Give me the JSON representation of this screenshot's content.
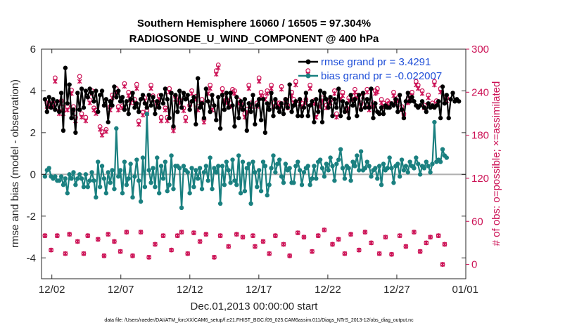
{
  "chart_data": {
    "type": "line",
    "title_line1": "Southern Hemisphere 16060 / 16505 = 97.304%",
    "title_line2": "RADIOSONDE_U_WIND_COMPONENT @ 400 hPa",
    "xlabel": "Dec.01,2013 00:00:00 start",
    "ylabel_left": "rmse and bias (model - observation)",
    "ylabel_right": "# of obs: o=possible; ×=assimilated",
    "footnote": "data file: /Users/raeder/DAI/ATM_forcXX/CAM6_setup/f.e21.FHIST_BGC.f09_025.CAM6assim.011/Diags_NTrS_2013-12/obs_diag_output.nc",
    "x_ticks": [
      1.5,
      6.5,
      11.5,
      16.5,
      21.5,
      26.5,
      31.5
    ],
    "x_tick_labels": [
      "12/02",
      "12/07",
      "12/12",
      "12/17",
      "12/22",
      "12/27",
      "01/01"
    ],
    "xlim": [
      0.75,
      31.5
    ],
    "ylim_left": [
      -5,
      6
    ],
    "y_ticks_left": [
      -4,
      -2,
      0,
      2,
      4,
      6
    ],
    "ylim_right": [
      -20,
      300
    ],
    "y_ticks_right": [
      0,
      60,
      120,
      180,
      240,
      300
    ],
    "zero_line": 0,
    "colors": {
      "rmse": "#000000",
      "bias": "#1a8080",
      "obs": "#cc1155",
      "zero": "#b0b0b0",
      "legend_text": "#1f4fd8"
    },
    "series": [
      {
        "name": "rmse grand pr = 3.4291",
        "axis": "left",
        "values": [
          3.6,
          3.0,
          3.7,
          3.2,
          3.6,
          3.1,
          3.5,
          3.0,
          3.9,
          2.1,
          5.1,
          3.4,
          4.3,
          2.7,
          3.1,
          2.0,
          3.9,
          3.1,
          4.1,
          3.2,
          4.0,
          3.7,
          4.1,
          3.9,
          3.5,
          4.0,
          3.0,
          3.8,
          4.0,
          3.3,
          3.6,
          2.5,
          3.5,
          3.3,
          4.2,
          3.7,
          4.0,
          3.5,
          3.7,
          3.1,
          3.5,
          2.9,
          3.6,
          3.9,
          3.2,
          3.4,
          3.0,
          3.6,
          3.8,
          3.4,
          3.2,
          3.8,
          3.3,
          3.7,
          2.9,
          3.5,
          3.2,
          3.8,
          3.4,
          4.1,
          3.6,
          2.7,
          3.9,
          2.3,
          3.8,
          3.0,
          4.0,
          3.2,
          3.9,
          3.6,
          3.8,
          3.1,
          3.5,
          3.7,
          2.4,
          4.6,
          3.2,
          3.4,
          2.7,
          4.1,
          3.5,
          3.0,
          3.8,
          3.3,
          2.6,
          3.7,
          2.2,
          3.8,
          3.1,
          3.9,
          3.2,
          3.9,
          3.3,
          2.3,
          3.7,
          2.7,
          3.5,
          3.1,
          3.6,
          2.1,
          3.4,
          3.0,
          3.8,
          2.4,
          3.3,
          3.6,
          2.6,
          3.6,
          2.0,
          3.4,
          3.1,
          3.9,
          2.8,
          3.6,
          3.2,
          3.0,
          3.4,
          2.9,
          3.6,
          3.2,
          4.3,
          3.0,
          3.3,
          3.5,
          2.8,
          3.6,
          2.8,
          3.2,
          3.9,
          2.8,
          3.3,
          3.5,
          2.5,
          3.6,
          3.0,
          4.0,
          2.5,
          3.9,
          3.6,
          3.2,
          3.7,
          2.8,
          3.6,
          3.2,
          4.1,
          2.8,
          3.5,
          3.0,
          3.4,
          2.7,
          3.8,
          3.3,
          3.6,
          2.8,
          3.8,
          3.1,
          3.9,
          3.2,
          3.6,
          3.2,
          4.1,
          2.7,
          3.4,
          3.0,
          2.9,
          3.2,
          2.9,
          3.3,
          3.2,
          3.2,
          3.4,
          3.3,
          3.6,
          3.0,
          3.8,
          3.1,
          2.7,
          3.5,
          3.9,
          3.5,
          3.7,
          3.5,
          3.3,
          3.2,
          3.3,
          3.5,
          3.2,
          3.0,
          3.4,
          3.2,
          3.3,
          3.2,
          3.3,
          3.5,
          2.7,
          4.2,
          3.4,
          3.8,
          2.7,
          3.6,
          3.9,
          3.5,
          3.6,
          3.5
        ]
      },
      {
        "name": "bias grand pr = -0.022007",
        "axis": "left",
        "values": [
          -0.1,
          0.2,
          0.3,
          -0.1,
          -0.2,
          -0.1,
          -0.3,
          -0.3,
          -0.1,
          -0.5,
          -0.2,
          -0.9,
          0.0,
          -0.2,
          0.1,
          -0.5,
          -0.2,
          0.0,
          -0.2,
          -0.6,
          0.0,
          -0.6,
          -0.3,
          0.1,
          -0.3,
          -1.1,
          0.6,
          -0.6,
          0.4,
          -0.2,
          -0.9,
          0.1,
          -0.4,
          0.2,
          -0.7,
          2.2,
          -0.1,
          0.2,
          -0.9,
          0.6,
          -0.5,
          -0.2,
          0.5,
          -1.1,
          -0.1,
          0.7,
          -0.3,
          -1.3,
          0.8,
          -0.6,
          2.9,
          0.2,
          -0.4,
          0.3,
          -0.6,
          0.8,
          -0.9,
          0.4,
          -0.2,
          0.6,
          -0.8,
          -0.5,
          0.9,
          -0.7,
          0.4,
          0.4,
          0.3,
          -1.6,
          0.4,
          0.2,
          0.1,
          -0.9,
          0.3,
          -0.6,
          0.2,
          -0.2,
          0.3,
          -0.7,
          0.1,
          0.4,
          -0.3,
          0.8,
          -0.7,
          0.3,
          0.1,
          0.4,
          -1.4,
          0.4,
          -0.5,
          0.6,
          0.2,
          -0.4,
          0.7,
          -0.3,
          -0.5,
          0.9,
          -0.9,
          0.6,
          -0.8,
          0.3,
          0.5,
          -1.4,
          0.6,
          0.1,
          -0.6,
          0.2,
          -0.8,
          0.6,
          0.4,
          -1.0,
          -0.5,
          0.3,
          0.9,
          0.1,
          0.5,
          0.7,
          -0.1,
          -0.4,
          0.5,
          0.2,
          0.3,
          -0.4,
          -0.4,
          0.4,
          0.6,
          0.2,
          -0.5,
          0.1,
          0.3,
          0.4,
          -0.5,
          -0.2,
          0.4,
          -0.2,
          0.6,
          0.7,
          0.3,
          -0.1,
          0.5,
          0.2,
          0.8,
          0.4,
          -0.3,
          0.5,
          0.7,
          1.2,
          0.3,
          -0.2,
          0.4,
          0.3,
          -0.3,
          0.6,
          0.4,
          0.9,
          0.2,
          1.1,
          0.2,
          0.3,
          0.6,
          0.4,
          -0.1,
          0.2,
          0.3,
          -0.2,
          0.4,
          -0.5,
          0.5,
          0.2,
          0.3,
          0.8,
          0.3,
          -0.4,
          0.4,
          0.5,
          -0.1,
          0.7,
          0.2,
          0.4,
          0.1,
          0.6,
          0.4,
          0.3,
          0.8,
          0.5,
          0.0,
          0.4,
          0.3,
          0.6,
          0.4,
          0.1,
          0.5,
          2.5,
          0.6,
          0.7,
          0.6,
          1.2,
          0.9,
          0.8
        ]
      },
      {
        "name": "obs possible",
        "axis": "right",
        "marker": "circle",
        "values": [
          40,
          225,
          225,
          20,
          225,
          260,
          40,
          214,
          228,
          214,
          15,
          220,
          42,
          243,
          220,
          205,
          32,
          262,
          210,
          15,
          205,
          40,
          229,
          242,
          218,
          215,
          35,
          192,
          185,
          12,
          188,
          42,
          220,
          236,
          32,
          245,
          220,
          18,
          221,
          252,
          45,
          240,
          230,
          12,
          230,
          251,
          200,
          45,
          212,
          232,
          215,
          10,
          250,
          235,
          28,
          225,
          235,
          205,
          40,
          218,
          205,
          245,
          20,
          190,
          235,
          40,
          230,
          45,
          218,
          205,
          15,
          222,
          242,
          44,
          234,
          220,
          32,
          230,
          202,
          42,
          242,
          250,
          220,
          10,
          270,
          278,
          40,
          245,
          232,
          230,
          25,
          225,
          244,
          242,
          42,
          229,
          225,
          38,
          210,
          216,
          250,
          225,
          40,
          25,
          225,
          260,
          240,
          32,
          235,
          242,
          15,
          250,
          225,
          40,
          225,
          225,
          248,
          28,
          230,
          222,
          12,
          240,
          230,
          255,
          44,
          228,
          225,
          38,
          230,
          270,
          250,
          18,
          228,
          210,
          40,
          224,
          232,
          48,
          222,
          228,
          230,
          28,
          242,
          210,
          35,
          235,
          240,
          15,
          218,
          232,
          42,
          235,
          244,
          236,
          20,
          225,
          238,
          45,
          244,
          220,
          30,
          225,
          242,
          245,
          15,
          230,
          225,
          38,
          228,
          225,
          14,
          240,
          230,
          232,
          40,
          220,
          210,
          25,
          230,
          236,
          240,
          45,
          255,
          250,
          18,
          242,
          222,
          30,
          236,
          38,
          225,
          255,
          228,
          40,
          245,
          0,
          28,
          232
        ]
      },
      {
        "name": "obs assimilated",
        "axis": "right",
        "marker": "x",
        "values": [
          40,
          220,
          220,
          20,
          220,
          255,
          40,
          210,
          224,
          210,
          15,
          215,
          42,
          238,
          215,
          200,
          32,
          255,
          205,
          15,
          200,
          40,
          225,
          238,
          215,
          210,
          35,
          188,
          180,
          12,
          185,
          42,
          215,
          232,
          32,
          240,
          215,
          18,
          218,
          248,
          45,
          235,
          225,
          12,
          225,
          245,
          195,
          45,
          208,
          228,
          210,
          10,
          245,
          230,
          28,
          220,
          230,
          200,
          40,
          215,
          200,
          240,
          20,
          186,
          230,
          40,
          225,
          45,
          214,
          200,
          15,
          218,
          238,
          44,
          230,
          215,
          32,
          225,
          198,
          42,
          238,
          245,
          215,
          10,
          265,
          274,
          40,
          240,
          228,
          225,
          25,
          220,
          240,
          238,
          42,
          225,
          220,
          38,
          205,
          212,
          245,
          220,
          40,
          25,
          220,
          255,
          235,
          32,
          230,
          238,
          15,
          245,
          220,
          40,
          220,
          220,
          244,
          28,
          225,
          218,
          12,
          235,
          225,
          250,
          44,
          224,
          220,
          38,
          225,
          265,
          245,
          18,
          224,
          205,
          40,
          220,
          228,
          48,
          218,
          224,
          225,
          28,
          238,
          205,
          35,
          230,
          235,
          15,
          214,
          228,
          42,
          230,
          240,
          232,
          20,
          220,
          234,
          45,
          240,
          215,
          30,
          220,
          238,
          240,
          15,
          225,
          220,
          38,
          224,
          220,
          14,
          235,
          225,
          228,
          40,
          215,
          205,
          25,
          225,
          232,
          235,
          45,
          250,
          245,
          18,
          238,
          218,
          30,
          232,
          38,
          220,
          250,
          224,
          40,
          240,
          0,
          28,
          228
        ]
      }
    ]
  }
}
